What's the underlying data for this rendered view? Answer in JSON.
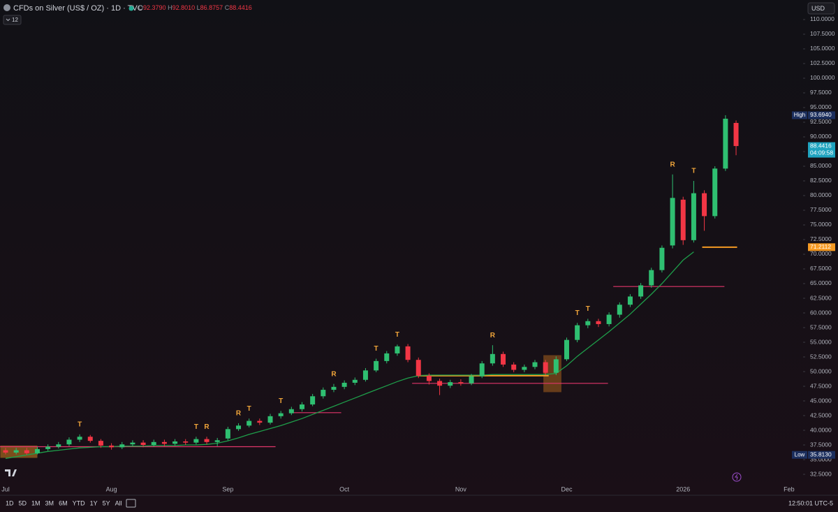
{
  "header": {
    "title": "CFDs on Silver (US$ / OZ) · 1D · TVC",
    "ohlc": [
      {
        "key": "O",
        "value": "92.3790"
      },
      {
        "key": "H",
        "value": "92.8010"
      },
      {
        "key": "L",
        "value": "86.8757"
      },
      {
        "key": "C",
        "value": "88.4416"
      }
    ],
    "indicator_count": "12",
    "currency": "USD"
  },
  "toolbar": {
    "ranges": [
      "1D",
      "5D",
      "1M",
      "3M",
      "6M",
      "YTD",
      "1Y",
      "5Y",
      "All"
    ],
    "clock": "12:50:01 UTC-5"
  },
  "chart_data": {
    "type": "candlestick",
    "categories": [
      "Jul",
      null,
      null,
      null,
      null,
      null,
      null,
      null,
      null,
      null,
      "Aug",
      null,
      null,
      null,
      null,
      null,
      null,
      null,
      null,
      null,
      null,
      "Sep",
      null,
      null,
      null,
      null,
      null,
      null,
      null,
      null,
      null,
      null,
      "Oct",
      null,
      null,
      null,
      null,
      null,
      null,
      null,
      null,
      null,
      null,
      "Nov",
      null,
      null,
      null,
      null,
      null,
      null,
      null,
      null,
      null,
      "Dec",
      null,
      null,
      null,
      null,
      null,
      null,
      null,
      null,
      null,
      null,
      "2026",
      null,
      null,
      null,
      null,
      null,
      null,
      null,
      null,
      null,
      "Feb"
    ],
    "open": [
      36.6,
      36.2,
      36.6,
      36.1,
      36.8,
      37.2,
      37.6,
      38.4,
      38.9,
      38.2,
      37.4,
      37.1,
      37.6,
      37.9,
      37.5,
      38.0,
      37.7,
      38.1,
      37.9,
      38.5,
      38.0,
      38.6,
      40.2,
      40.8,
      41.6,
      41.3,
      42.4,
      42.9,
      43.6,
      44.4,
      45.8,
      46.9,
      47.4,
      48.1,
      48.6,
      50.2,
      51.8,
      53.1,
      54.3,
      52.0,
      49.3,
      48.4,
      47.6,
      48.2,
      48.0,
      49.2,
      51.4,
      53.0,
      51.2,
      50.3,
      50.8,
      51.6,
      49.8,
      52.1,
      55.4,
      57.9,
      58.6,
      58.1,
      59.7,
      61.4,
      62.8,
      64.7,
      67.3,
      71.5,
      79.3,
      72.4,
      80.4,
      76.5,
      84.6,
      92.379,
      null,
      null,
      null,
      null,
      null
    ],
    "high": [
      37.0,
      37.0,
      37.0,
      37.2,
      37.6,
      38.0,
      38.8,
      39.3,
      39.2,
      38.5,
      37.8,
      38.0,
      38.3,
      38.3,
      38.4,
      38.4,
      38.5,
      38.5,
      38.9,
      38.9,
      38.7,
      40.6,
      41.2,
      42.0,
      42.0,
      42.8,
      43.3,
      44.0,
      44.8,
      46.2,
      47.3,
      47.9,
      48.5,
      49.0,
      50.6,
      52.2,
      53.5,
      54.6,
      54.7,
      52.4,
      49.7,
      48.8,
      48.6,
      48.7,
      49.6,
      51.8,
      54.5,
      53.4,
      51.6,
      51.2,
      52.0,
      52.0,
      52.6,
      55.8,
      58.3,
      59.0,
      59.0,
      60.1,
      61.8,
      63.2,
      65.1,
      67.7,
      71.5,
      83.6,
      79.8,
      82.5,
      80.9,
      85.0,
      93.694,
      92.801,
      null,
      null,
      null,
      null,
      null
    ],
    "low": [
      35.9,
      35.9,
      35.813,
      35.9,
      36.5,
      36.9,
      37.3,
      38.0,
      37.9,
      37.0,
      36.7,
      36.8,
      37.3,
      37.1,
      37.2,
      37.3,
      37.4,
      37.5,
      37.6,
      37.6,
      37.3,
      38.3,
      39.9,
      40.5,
      40.9,
      41.0,
      42.0,
      42.6,
      43.2,
      44.1,
      45.4,
      46.5,
      47.0,
      47.7,
      48.3,
      49.9,
      51.4,
      52.7,
      51.6,
      48.9,
      47.8,
      46.0,
      47.2,
      47.6,
      47.7,
      48.9,
      51.0,
      50.8,
      49.9,
      49.9,
      50.4,
      49.4,
      49.4,
      51.8,
      55.0,
      57.4,
      57.6,
      57.7,
      59.2,
      61.0,
      62.4,
      64.3,
      66.9,
      71.0,
      71.6,
      72.0,
      74.0,
      76.1,
      84.2,
      86.8757,
      null,
      null,
      null,
      null,
      null
    ],
    "close": [
      36.2,
      36.6,
      36.1,
      36.8,
      37.2,
      37.6,
      38.4,
      38.9,
      38.2,
      37.4,
      37.1,
      37.6,
      37.9,
      37.5,
      38.0,
      37.7,
      38.1,
      37.9,
      38.5,
      38.0,
      38.3,
      40.2,
      40.8,
      41.6,
      41.3,
      42.4,
      42.9,
      43.6,
      44.4,
      45.8,
      46.9,
      47.4,
      48.1,
      48.6,
      50.2,
      51.8,
      53.1,
      54.3,
      52.0,
      49.3,
      48.4,
      47.6,
      48.2,
      48.0,
      49.2,
      51.4,
      53.0,
      51.2,
      50.3,
      50.8,
      51.6,
      49.8,
      52.1,
      55.4,
      57.9,
      58.6,
      58.1,
      59.7,
      61.4,
      62.8,
      64.7,
      67.3,
      71.1,
      79.6,
      72.4,
      80.4,
      76.5,
      84.6,
      93.1,
      88.4416,
      null,
      null,
      null,
      null,
      null
    ],
    "up_color": "#2fbf71",
    "down_color": "#f23645",
    "trend_line": [
      35.2,
      35.5,
      35.8,
      36.1,
      36.4,
      36.6,
      36.8,
      37.0,
      37.1,
      37.2,
      37.2,
      37.3,
      37.3,
      37.3,
      37.4,
      37.4,
      37.4,
      37.5,
      37.5,
      37.6,
      37.8,
      38.2,
      38.7,
      39.3,
      39.8,
      40.3,
      40.8,
      41.4,
      42.0,
      42.7,
      43.4,
      44.1,
      44.8,
      45.5,
      46.2,
      46.9,
      47.6,
      48.3,
      48.9,
      49.3,
      49.4,
      49.4,
      49.4,
      49.4,
      49.4,
      49.4,
      49.5,
      49.5,
      49.5,
      49.5,
      49.5,
      49.5,
      49.7,
      51.0,
      52.6,
      54.0,
      55.4,
      56.8,
      58.3,
      59.8,
      61.5,
      63.2,
      65.0,
      67.0,
      69.0,
      70.4,
      null,
      null,
      null,
      null,
      null,
      null,
      null,
      null,
      null
    ],
    "trend_color": "#1e9e4a",
    "levels": [
      {
        "value": 37.2,
        "color": "#e0356a"
      },
      {
        "value": 43.0,
        "color": "#e0356a"
      },
      {
        "value": 48.0,
        "color": "#e0356a"
      },
      {
        "value": 64.5,
        "color": "#e0356a"
      },
      {
        "value": 49.3,
        "color": "#f59a23"
      },
      {
        "value": 71.2112,
        "color": "#f59a23"
      }
    ],
    "zones": [
      {
        "low": 35.3,
        "high": 37.4,
        "color": "#f59a23"
      },
      {
        "low": 46.5,
        "high": 52.8,
        "color": "#c8731e"
      }
    ],
    "signals": [
      "T",
      "T",
      "R",
      "R",
      "T",
      "T",
      "R",
      "T",
      "T",
      "R",
      "T",
      "T",
      "R",
      "T"
    ],
    "signal_color": "#f0a53a",
    "price_labels": [
      {
        "label": "High",
        "value": 93.694,
        "value_label": "93.6940",
        "color": "#1c2f5e"
      },
      {
        "value": 88.4416,
        "value_label": "88.4416",
        "sublabel": "04:09:58",
        "color": "#1fa3bf"
      },
      {
        "value": 71.2112,
        "value_label": "71.2112",
        "color": "#f59a23"
      },
      {
        "label": "Low",
        "value": 35.813,
        "value_label": "35.8130",
        "color": "#1c2f5e"
      }
    ],
    "ylim": [
      29.05,
      113.33
    ],
    "yticks": [
      {
        "value": 32.5,
        "label": "32.5000"
      },
      {
        "value": 35,
        "label": "35.0000"
      },
      {
        "value": 37.5,
        "label": "37.5000"
      },
      {
        "value": 40,
        "label": "40.0000"
      },
      {
        "value": 42.5,
        "label": "42.5000"
      },
      {
        "value": 45,
        "label": "45.0000"
      },
      {
        "value": 47.5,
        "label": "47.5000"
      },
      {
        "value": 50,
        "label": "50.0000"
      },
      {
        "value": 52.5,
        "label": "52.5000"
      },
      {
        "value": 55,
        "label": "55.0000"
      },
      {
        "value": 57.5,
        "label": "57.5000"
      },
      {
        "value": 60,
        "label": "60.0000"
      },
      {
        "value": 62.5,
        "label": "62.5000"
      },
      {
        "value": 65,
        "label": "65.0000"
      },
      {
        "value": 67.5,
        "label": "67.5000"
      },
      {
        "value": 70,
        "label": "70.0000"
      },
      {
        "value": 72.5,
        "label": "72.5000"
      },
      {
        "value": 75,
        "label": "75.0000"
      },
      {
        "value": 77.5,
        "label": "77.5000"
      },
      {
        "value": 80,
        "label": "80.0000"
      },
      {
        "value": 82.5,
        "label": "82.5000"
      },
      {
        "value": 85,
        "label": "85.0000"
      },
      {
        "value": 87.5,
        "label": "87.5000"
      },
      {
        "value": 90,
        "label": "90.0000"
      },
      {
        "value": 92.5,
        "label": "92.5000"
      },
      {
        "value": 95,
        "label": "95.0000"
      },
      {
        "value": 97.5,
        "label": "97.5000"
      },
      {
        "value": 100,
        "label": "100.0000"
      },
      {
        "value": 102.5,
        "label": "102.5000"
      },
      {
        "value": 105,
        "label": "105.0000"
      },
      {
        "value": 107.5,
        "label": "107.5000"
      },
      {
        "value": 110,
        "label": "110.0000"
      }
    ]
  }
}
